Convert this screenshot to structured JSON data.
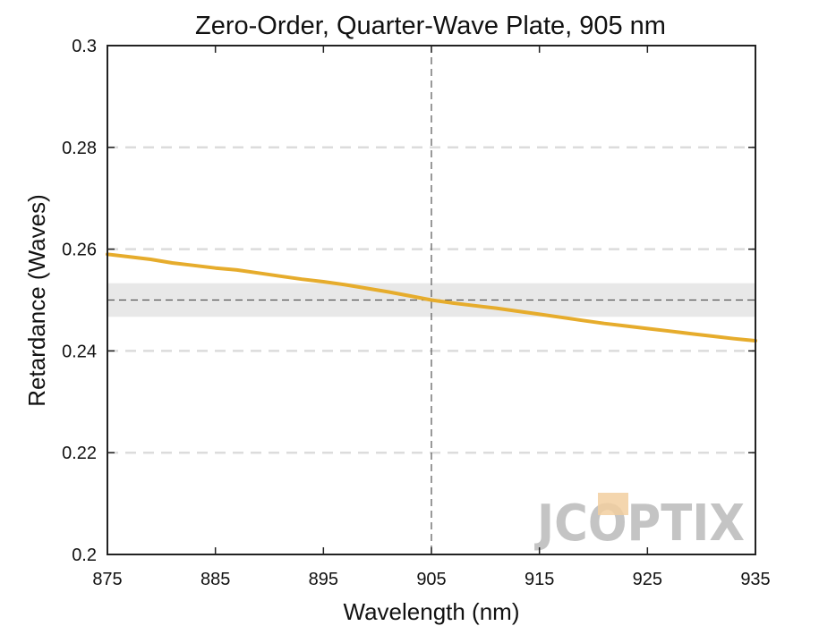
{
  "chart_data": {
    "type": "line",
    "title": "Zero-Order, Quarter-Wave Plate, 905 nm",
    "xlabel": "Wavelength (nm)",
    "ylabel": "Retardance (Waves)",
    "xlim": [
      875,
      935
    ],
    "ylim": [
      0.2,
      0.3
    ],
    "xticks": [
      875,
      885,
      895,
      905,
      915,
      925,
      935
    ],
    "yticks": [
      0.2,
      0.22,
      0.24,
      0.26,
      0.28,
      0.3
    ],
    "ytick_labels": [
      "0.2",
      "0.22",
      "0.24",
      "0.26",
      "0.28",
      "0.3"
    ],
    "grid": "horizontal dashed",
    "reference_line_x": 905,
    "reference_line_y": 0.25,
    "tolerance_band": [
      0.2467,
      0.2533
    ],
    "series": [
      {
        "x": [
          875,
          877,
          879,
          881,
          883,
          885,
          887,
          889,
          891,
          893,
          895,
          897,
          899,
          901,
          903,
          905,
          907,
          909,
          911,
          913,
          915,
          917,
          919,
          921,
          923,
          925,
          927,
          929,
          931,
          933,
          935
        ],
        "y": [
          0.259,
          0.2585,
          0.258,
          0.2573,
          0.2568,
          0.2563,
          0.2559,
          0.2553,
          0.2547,
          0.2541,
          0.2536,
          0.253,
          0.2523,
          0.2516,
          0.2508,
          0.25,
          0.2494,
          0.2489,
          0.2484,
          0.2478,
          0.2472,
          0.2466,
          0.246,
          0.2454,
          0.2449,
          0.2444,
          0.2439,
          0.2434,
          0.2429,
          0.2424,
          0.242
        ],
        "color": "#e6ac2c"
      }
    ],
    "colors": {
      "line": "#e6ac2c",
      "grid": "#dcdcdc",
      "band": "#e8e8e8",
      "reference": "#555555",
      "axes": "#222222"
    }
  },
  "watermark": {
    "text": "JCOPTIX",
    "color": "#c4c4c4",
    "accent": "#f2cfa0"
  }
}
